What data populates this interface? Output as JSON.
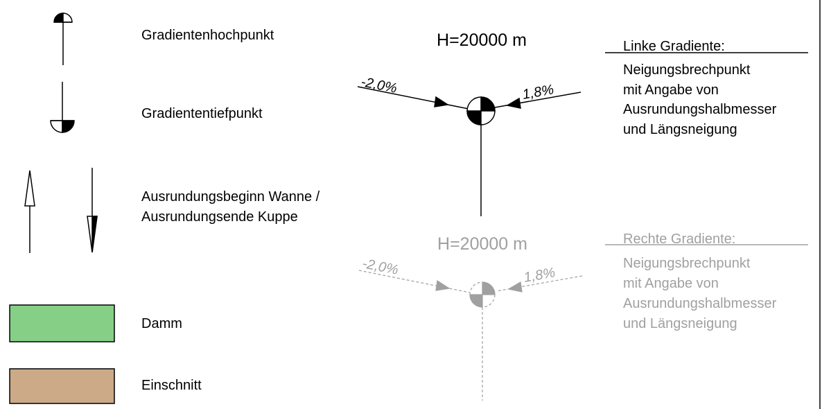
{
  "legend": [
    {
      "label": "Gradientenhochpunkt"
    },
    {
      "label": "Gradiententiefpunkt"
    },
    {
      "label_lines": [
        "Ausrundungsbeginn Wanne /",
        "Ausrundungsende Kuppe"
      ]
    },
    {
      "label": "Damm"
    },
    {
      "label": "Einschnitt"
    }
  ],
  "diagrams": [
    {
      "elevation": "H=20000 m",
      "left_grade": "-2,0%",
      "right_grade": "1,8%",
      "heading": "Linke Gradiente:",
      "description": [
        "Neigungsbrechpunkt",
        "mit Angabe von",
        "Ausrundungshalbmesser",
        "und Längsneigung"
      ]
    },
    {
      "elevation": "H=20000 m",
      "left_grade": "-2,0%",
      "right_grade": "1,8%",
      "heading": "Rechte Gradiente:",
      "description": [
        "Neigungsbrechpunkt",
        "mit Angabe von",
        "Ausrundungshalbmesser",
        "und Längsneigung"
      ]
    }
  ]
}
